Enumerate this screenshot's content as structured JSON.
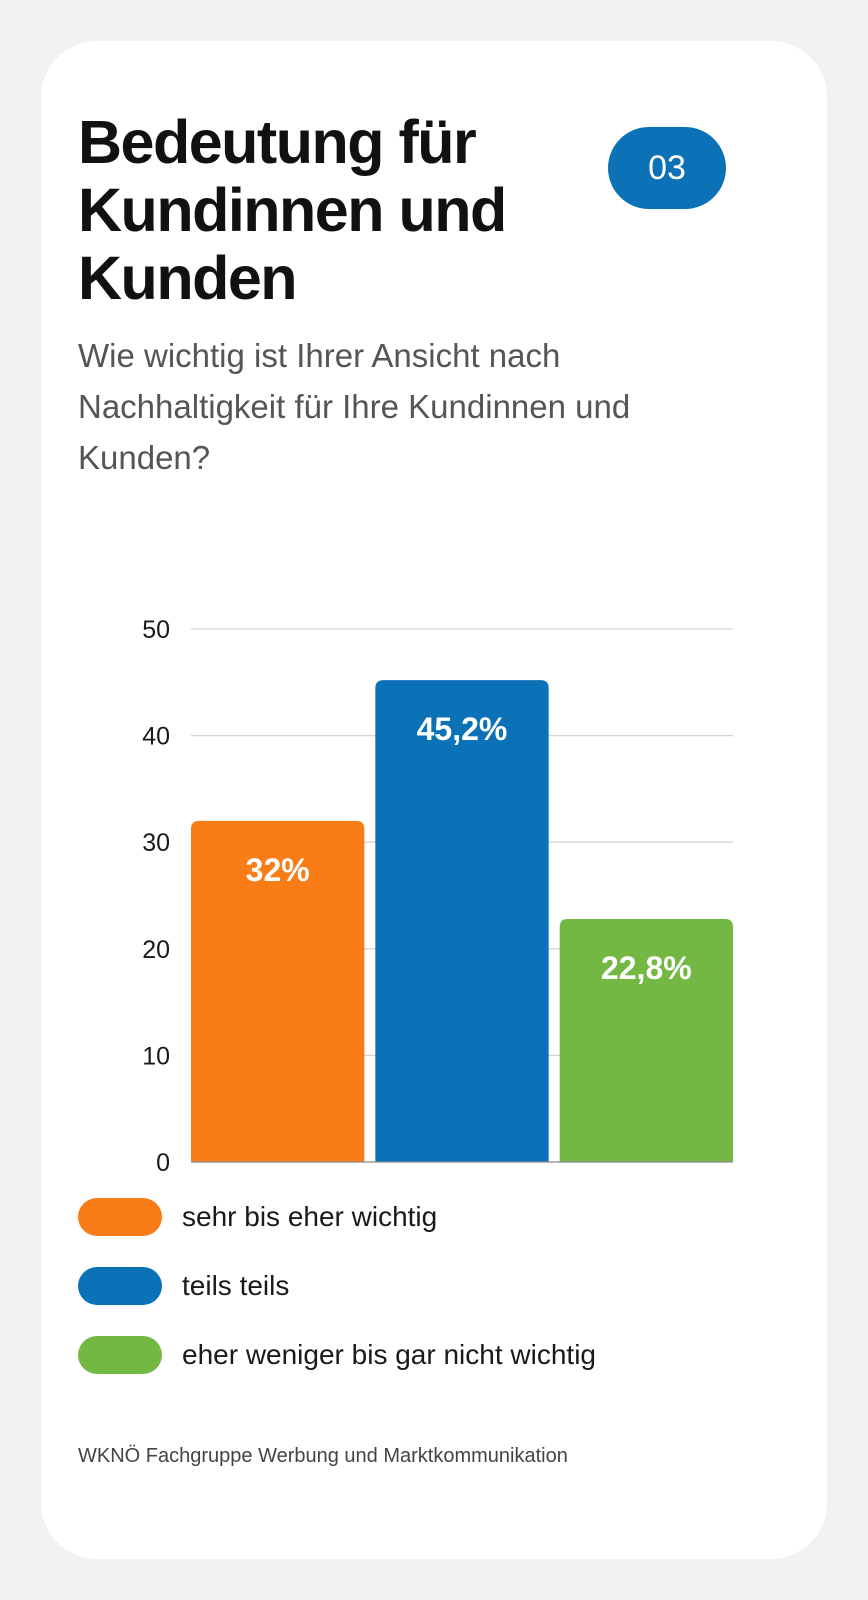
{
  "header": {
    "title": "Bedeutung für Kundinnen und Kunden",
    "badge": "03",
    "subtitle": "Wie wichtig ist Ihrer Ansicht nach Nachhaltigkeit für Ihre Kundinnen und Kunden?"
  },
  "chart_data": {
    "type": "bar",
    "title": "",
    "xlabel": "",
    "ylabel": "",
    "categories": [
      "sehr bis eher wichtig",
      "teils teils",
      "eher weniger bis gar nicht wichtig"
    ],
    "values": [
      32,
      45.2,
      22.8
    ],
    "data_labels": [
      "32%",
      "45,2%",
      "22,8%"
    ],
    "colors": [
      "#f97d16",
      "#0c72b8",
      "#74b844"
    ],
    "ylim": [
      0,
      50
    ],
    "yticks": [
      "0",
      "10",
      "20",
      "30",
      "40",
      "50"
    ],
    "grid": true,
    "legend_position": "bottom"
  },
  "legend": {
    "items": [
      {
        "label": "sehr bis eher wichtig",
        "color": "#f97d16"
      },
      {
        "label": "teils teils",
        "color": "#0c72b8"
      },
      {
        "label": "eher weniger bis gar nicht wichtig",
        "color": "#74b844"
      }
    ]
  },
  "footer": {
    "source": "WKNÖ Fachgruppe Werbung und Marktkommunikation"
  },
  "theme": {
    "accent": "#0c72b8"
  }
}
